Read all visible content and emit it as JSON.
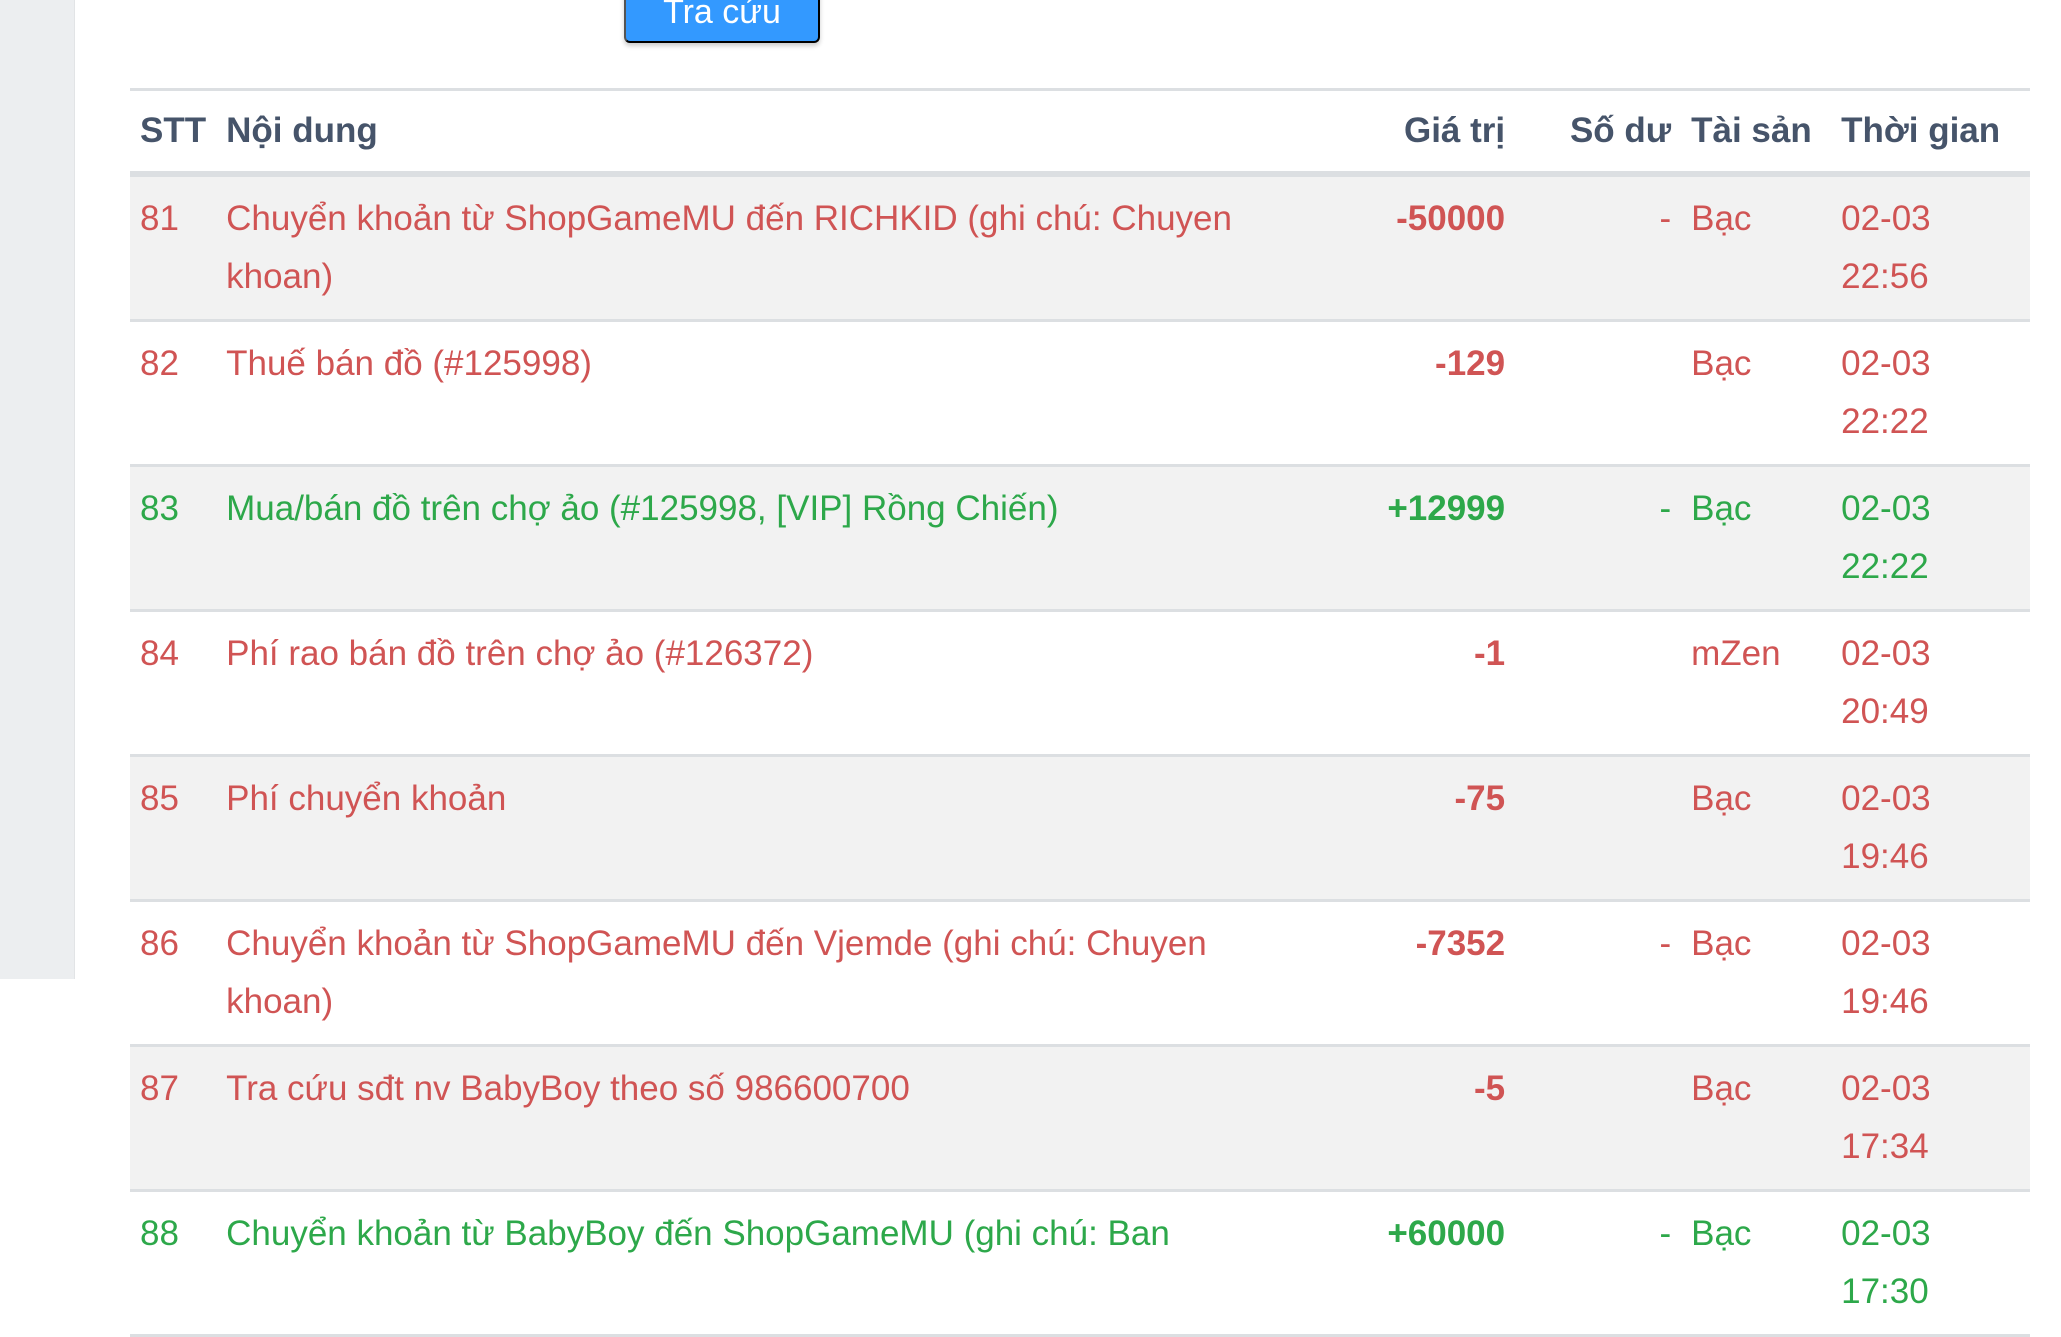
{
  "search_button": "Tra cứu",
  "headers": {
    "stt": "STT",
    "content": "Nội dung",
    "value": "Giá trị",
    "balance": "Số dư",
    "asset": "Tài sản",
    "time": "Thời gian"
  },
  "colors": {
    "negative": "#d05454",
    "positive": "#2da84a",
    "button": "#3399ff"
  },
  "rows": [
    {
      "stt": "81",
      "content": "Chuyển khoản từ ShopGameMU đến RICHKID (ghi chú: Chuyen khoan)",
      "value": "-50000",
      "balance": "-",
      "asset": "Bạc",
      "time": "02-03 22:56",
      "type": "neg"
    },
    {
      "stt": "82",
      "content": "Thuế bán đồ (#125998)",
      "value": "-129",
      "balance": "",
      "asset": "Bạc",
      "time": "02-03 22:22",
      "type": "neg"
    },
    {
      "stt": "83",
      "content": "Mua/bán đồ trên chợ ảo (#125998, [VIP] Rồng Chiến)",
      "value": "+12999",
      "balance": "-",
      "asset": "Bạc",
      "time": "02-03 22:22",
      "type": "pos"
    },
    {
      "stt": "84",
      "content": "Phí rao bán đồ trên chợ ảo (#126372)",
      "value": "-1",
      "balance": "",
      "asset": "mZen",
      "time": "02-03 20:49",
      "type": "neg"
    },
    {
      "stt": "85",
      "content": "Phí chuyển khoản",
      "value": "-75",
      "balance": "",
      "asset": "Bạc",
      "time": "02-03 19:46",
      "type": "neg"
    },
    {
      "stt": "86",
      "content": "Chuyển khoản từ ShopGameMU đến Vjemde (ghi chú: Chuyen khoan)",
      "value": "-7352",
      "balance": "-",
      "asset": "Bạc",
      "time": "02-03 19:46",
      "type": "neg"
    },
    {
      "stt": "87",
      "content": "Tra cứu sđt nv BabyBoy theo số 986600700",
      "value": "-5",
      "balance": "",
      "asset": "Bạc",
      "time": "02-03 17:34",
      "type": "neg"
    },
    {
      "stt": "88",
      "content": "Chuyển khoản từ BabyBoy đến ShopGameMU (ghi chú: Ban",
      "value": "+60000",
      "balance": "-",
      "asset": "Bạc",
      "time": "02-03 17:30",
      "type": "pos"
    }
  ]
}
